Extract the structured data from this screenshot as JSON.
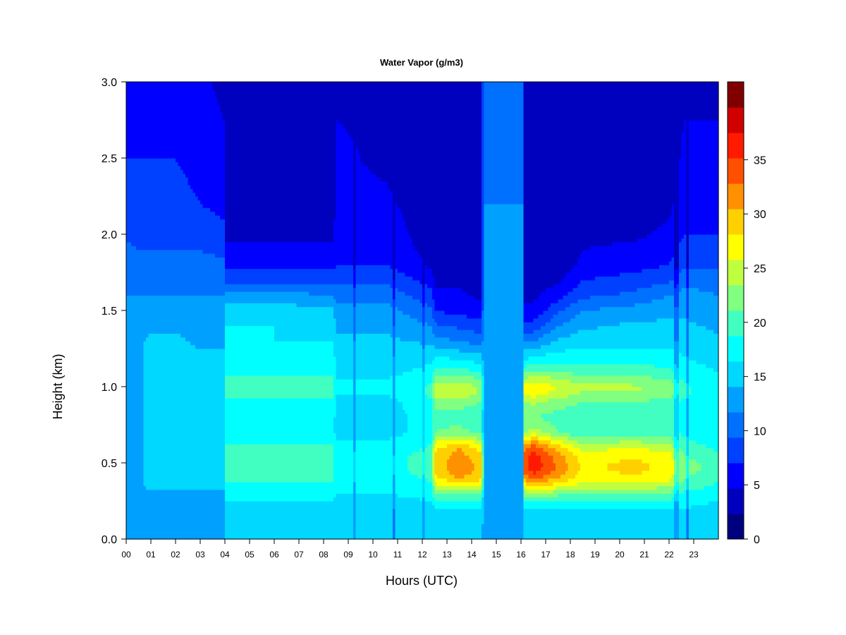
{
  "chart_data": {
    "type": "heatmap",
    "title": "Water Vapor (g/m3)",
    "xlabel": "Hours (UTC)",
    "ylabel": "Height (km)",
    "x_tick_labels": [
      "00",
      "01",
      "02",
      "03",
      "04",
      "05",
      "06",
      "07",
      "08",
      "09",
      "10",
      "11",
      "12",
      "13",
      "14",
      "15",
      "16",
      "17",
      "18",
      "19",
      "20",
      "21",
      "22",
      "23"
    ],
    "x_range_hours": [
      0,
      24
    ],
    "y_ticks": [
      0.0,
      0.5,
      1.0,
      1.5,
      2.0,
      2.5,
      3.0
    ],
    "y_tick_labels": [
      "0.0",
      "0.5",
      "1.0",
      "1.5",
      "2.0",
      "2.5",
      "3.0"
    ],
    "ylim_km": [
      0,
      3
    ],
    "colorbar": {
      "levels": [
        0,
        2.5,
        5,
        7.5,
        10,
        12.5,
        15,
        17.5,
        20,
        22.5,
        25,
        27.5,
        30,
        32.5,
        35,
        37.5
      ],
      "colors": [
        "#00007f",
        "#0000bf",
        "#0000ff",
        "#0040ff",
        "#0070ff",
        "#00a0ff",
        "#00d8ff",
        "#00ffff",
        "#40ffc0",
        "#80ff80",
        "#c0ff40",
        "#ffff00",
        "#ffd000",
        "#ff9000",
        "#ff5000",
        "#ff1a00",
        "#d00000",
        "#800000"
      ],
      "tick_values": [
        0,
        5,
        10,
        15,
        20,
        25,
        30,
        35
      ],
      "tick_labels": [
        "0",
        "5",
        "10",
        "15",
        "20",
        "25",
        "30",
        "35"
      ]
    },
    "grid": false,
    "profile_heights_km": [
      0.0,
      0.1,
      0.2,
      0.25,
      0.3,
      0.35,
      0.4,
      0.45,
      0.5,
      0.55,
      0.6,
      0.65,
      0.7,
      0.8,
      0.9,
      0.95,
      1.0,
      1.05,
      1.1,
      1.2,
      1.3,
      1.4,
      1.5,
      1.6,
      1.7,
      1.8,
      2.0,
      2.2,
      2.5,
      3.0
    ],
    "profiles": [
      {
        "hour": 0.0,
        "values": [
          10,
          10,
          10,
          10,
          10,
          10,
          10,
          10,
          10,
          10,
          10,
          10,
          10,
          11,
          11,
          11,
          11,
          11,
          11,
          11,
          11,
          11,
          10,
          10,
          10,
          9,
          7,
          6,
          5,
          3
        ]
      },
      {
        "hour": 0.5,
        "values": [
          11,
          11,
          11,
          11,
          12,
          12,
          12,
          12,
          12,
          12,
          12,
          12,
          12,
          12,
          12,
          12,
          12,
          12,
          12,
          12,
          12,
          12,
          11,
          10,
          9,
          8,
          7,
          6,
          5,
          3
        ]
      },
      {
        "hour": 1.0,
        "values": [
          11,
          11,
          11,
          11,
          12,
          13,
          13,
          13,
          13,
          13,
          13,
          13,
          13,
          13,
          13,
          13,
          13,
          13,
          13,
          13,
          13,
          12,
          11,
          10,
          9,
          8,
          7,
          6,
          5,
          4
        ]
      },
      {
        "hour": 2.0,
        "values": [
          11,
          11,
          11,
          11,
          12,
          13,
          13,
          13,
          13,
          13,
          13,
          13,
          13,
          13,
          13,
          13,
          13,
          13,
          13,
          13,
          13,
          12,
          11,
          10,
          9,
          8,
          7,
          6,
          5,
          4
        ]
      },
      {
        "hour": 3.0,
        "values": [
          11,
          11,
          11,
          11,
          12,
          13,
          13,
          13,
          13,
          13,
          13,
          13,
          13,
          13,
          13,
          13,
          13,
          13,
          13,
          13,
          12,
          12,
          11,
          10,
          9,
          8,
          7,
          5,
          4,
          3
        ]
      },
      {
        "hour": 3.95,
        "values": [
          11,
          11,
          11,
          11,
          12,
          13,
          13,
          13,
          13,
          13,
          13,
          13,
          13,
          13,
          13,
          13,
          13,
          13,
          13,
          13,
          12,
          12,
          11,
          10,
          9,
          8,
          6,
          4,
          3,
          2
        ]
      },
      {
        "hour": 4.0,
        "values": [
          13,
          13,
          14,
          15,
          16,
          17,
          18,
          19,
          19,
          19,
          18,
          17,
          16,
          16,
          17,
          18,
          18,
          18,
          17,
          16,
          15,
          15,
          14,
          11,
          7,
          4,
          2,
          1,
          1,
          1
        ]
      },
      {
        "hour": 6.0,
        "values": [
          13,
          13,
          14,
          15,
          16,
          17,
          18,
          19,
          19,
          19,
          18,
          17,
          16,
          16,
          17,
          18,
          18,
          18,
          17,
          16,
          15,
          15,
          14,
          11,
          7,
          4,
          2,
          1,
          1,
          1
        ]
      },
      {
        "hour": 8.4,
        "values": [
          13,
          13,
          14,
          15,
          16,
          17,
          18,
          19,
          19,
          19,
          18,
          17,
          16,
          16,
          17,
          18,
          18,
          18,
          17,
          16,
          15,
          14,
          13,
          10,
          7,
          4,
          2,
          1,
          1,
          1
        ]
      },
      {
        "hour": 8.5,
        "values": [
          13,
          13,
          14,
          14,
          15,
          15,
          16,
          16,
          16,
          16,
          15,
          15,
          14,
          14,
          14,
          15,
          15,
          15,
          14,
          14,
          13,
          12,
          11,
          9,
          7,
          5,
          4,
          3,
          3,
          2
        ]
      },
      {
        "hour": 10.5,
        "values": [
          13,
          13,
          14,
          14,
          15,
          15,
          16,
          16,
          16,
          16,
          15,
          15,
          14,
          14,
          14,
          15,
          15,
          15,
          14,
          14,
          13,
          12,
          11,
          9,
          7,
          5,
          4,
          3,
          2,
          2
        ]
      },
      {
        "hour": 12.4,
        "values": [
          13,
          13,
          14,
          15,
          16,
          17,
          18,
          19,
          19,
          19,
          18,
          17,
          16,
          16,
          17,
          18,
          18,
          17,
          16,
          14,
          12,
          10,
          8,
          6,
          4,
          2,
          1,
          1,
          1,
          1
        ]
      },
      {
        "hour": 12.5,
        "values": [
          14,
          14,
          15,
          17,
          20,
          24,
          27,
          28,
          28,
          28,
          27,
          24,
          20,
          19,
          21,
          23,
          24,
          22,
          19,
          15,
          11,
          8,
          5,
          3,
          2,
          1,
          1,
          1,
          1,
          1
        ]
      },
      {
        "hour": 13.5,
        "values": [
          14,
          14,
          15,
          17,
          21,
          26,
          30,
          32,
          32,
          31,
          30,
          26,
          21,
          19,
          21,
          24,
          24,
          22,
          19,
          14,
          10,
          7,
          4,
          3,
          2,
          1,
          1,
          1,
          1,
          1
        ]
      },
      {
        "hour": 14.4,
        "values": [
          14,
          14,
          15,
          17,
          20,
          25,
          28,
          29,
          29,
          28,
          26,
          23,
          19,
          18,
          20,
          22,
          22,
          20,
          17,
          13,
          9,
          6,
          4,
          2,
          1,
          1,
          1,
          1,
          1,
          1
        ]
      },
      {
        "hour": 14.5,
        "values": [
          11,
          11,
          11,
          11,
          11,
          12,
          12,
          12,
          12,
          12,
          12,
          12,
          11,
          11,
          11,
          11,
          11,
          11,
          11,
          11,
          11,
          11,
          11,
          11,
          11,
          11,
          11,
          10,
          10,
          9
        ]
      },
      {
        "hour": 16.05,
        "values": [
          11,
          11,
          11,
          11,
          11,
          12,
          12,
          12,
          12,
          12,
          12,
          12,
          11,
          11,
          11,
          11,
          11,
          11,
          11,
          11,
          11,
          11,
          11,
          11,
          11,
          11,
          10,
          10,
          9,
          9
        ]
      },
      {
        "hour": 16.1,
        "values": [
          14,
          14,
          15,
          17,
          21,
          26,
          30,
          33,
          34,
          33,
          31,
          27,
          22,
          20,
          22,
          25,
          26,
          23,
          19,
          14,
          10,
          6,
          3,
          2,
          1,
          1,
          1,
          1,
          1,
          1
        ]
      },
      {
        "hour": 16.5,
        "values": [
          14,
          14,
          15,
          18,
          22,
          28,
          33,
          36,
          37,
          36,
          34,
          30,
          24,
          20,
          23,
          26,
          27,
          24,
          20,
          15,
          10,
          6,
          3,
          2,
          1,
          1,
          1,
          1,
          1,
          1
        ]
      },
      {
        "hour": 17.5,
        "values": [
          14,
          14,
          15,
          17,
          21,
          26,
          30,
          32,
          32,
          31,
          29,
          25,
          20,
          19,
          21,
          24,
          25,
          23,
          20,
          16,
          13,
          10,
          7,
          4,
          2,
          1,
          1,
          1,
          1,
          1
        ]
      },
      {
        "hour": 18.5,
        "values": [
          14,
          14,
          15,
          17,
          20,
          24,
          26,
          27,
          27,
          26,
          24,
          21,
          18,
          18,
          20,
          22,
          23,
          21,
          19,
          16,
          14,
          12,
          10,
          7,
          5,
          3,
          2,
          1,
          1,
          1
        ]
      },
      {
        "hour": 20.5,
        "values": [
          14,
          14,
          15,
          17,
          20,
          24,
          27,
          28,
          28,
          27,
          25,
          22,
          19,
          18,
          20,
          22,
          23,
          21,
          19,
          16,
          14,
          13,
          11,
          8,
          6,
          4,
          2,
          1,
          1,
          1
        ]
      },
      {
        "hour": 22.0,
        "values": [
          14,
          14,
          15,
          17,
          20,
          23,
          26,
          27,
          27,
          26,
          24,
          21,
          18,
          18,
          19,
          21,
          22,
          20,
          18,
          16,
          14,
          13,
          12,
          10,
          7,
          5,
          3,
          2,
          1,
          1
        ]
      },
      {
        "hour": 22.6,
        "values": [
          14,
          14,
          15,
          16,
          17,
          19,
          20,
          21,
          21,
          20,
          19,
          18,
          17,
          17,
          17,
          18,
          18,
          17,
          16,
          15,
          14,
          13,
          12,
          11,
          9,
          7,
          5,
          4,
          3,
          2
        ]
      },
      {
        "hour": 24.0,
        "values": [
          14,
          14,
          14,
          15,
          16,
          17,
          18,
          19,
          19,
          18,
          17,
          16,
          15,
          15,
          15,
          16,
          16,
          15,
          15,
          14,
          13,
          12,
          11,
          10,
          9,
          7,
          5,
          4,
          3,
          2
        ]
      }
    ],
    "narrow_columns": [
      {
        "hour": 1.5,
        "width_hours": 0.04,
        "offset": -5
      },
      {
        "hour": 2.0,
        "width_hours": 0.03,
        "offset": -4
      },
      {
        "hour": 7.0,
        "width_hours": 0.04,
        "offset": -6
      },
      {
        "hour": 9.3,
        "width_hours": 0.05,
        "offset": -3
      },
      {
        "hour": 9.7,
        "width_hours": 0.04,
        "offset": -3
      },
      {
        "hour": 10.9,
        "width_hours": 0.05,
        "offset": -4
      },
      {
        "hour": 11.4,
        "width_hours": 0.04,
        "offset": -3
      },
      {
        "hour": 12.1,
        "width_hours": 0.05,
        "offset": -3
      },
      {
        "hour": 22.3,
        "width_hours": 0.06,
        "offset": -4
      },
      {
        "hour": 22.8,
        "width_hours": 0.05,
        "offset": -5
      }
    ]
  }
}
